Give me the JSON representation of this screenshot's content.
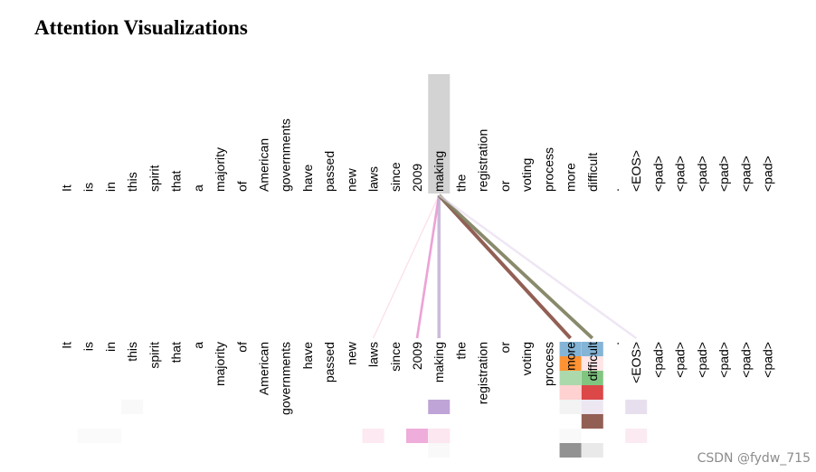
{
  "title": "Attention Visualizations",
  "watermark": "CSDN @fydw_715",
  "tokens": [
    "It",
    "is",
    "in",
    "this",
    "spirit",
    "that",
    "a",
    "majority",
    "of",
    "American",
    "governments",
    "have",
    "passed",
    "new",
    "laws",
    "since",
    "2009",
    "making",
    "the",
    "registration",
    "or",
    "voting",
    "process",
    "more",
    "difficult",
    ".",
    "<EOS>",
    "<pad>",
    "<pad>",
    "<pad>",
    "<pad>",
    "<pad>",
    "<pad>"
  ],
  "selected_token_index": 17,
  "attention_lines": [
    {
      "to": 14,
      "color": "#f7b6d2",
      "weight": 0.12
    },
    {
      "to": 16,
      "color": "#e377c2",
      "weight": 0.55
    },
    {
      "to": 17,
      "color": "#c5b0d5",
      "weight": 0.85
    },
    {
      "to": 23,
      "color": "#8c564b",
      "weight": 1.0
    },
    {
      "to": 24,
      "color": "#7f7f5f",
      "weight": 0.95
    },
    {
      "to": 26,
      "color": "#e6d8ee",
      "weight": 0.5
    }
  ],
  "highlight_cells": [
    {
      "col": 23,
      "row": 0,
      "color": "#1f77b4",
      "opacity": 0.55
    },
    {
      "col": 24,
      "row": 0,
      "color": "#1f77b4",
      "opacity": 0.55
    },
    {
      "col": 23,
      "row": 1,
      "color": "#ff7f0e",
      "opacity": 0.85
    },
    {
      "col": 24,
      "row": 1,
      "color": "#ff9896",
      "opacity": 0.25
    },
    {
      "col": 23,
      "row": 2,
      "color": "#2ca02c",
      "opacity": 0.4
    },
    {
      "col": 24,
      "row": 2,
      "color": "#2ca02c",
      "opacity": 0.6
    },
    {
      "col": 23,
      "row": 3,
      "color": "#ff9896",
      "opacity": 0.45
    },
    {
      "col": 24,
      "row": 3,
      "color": "#d62728",
      "opacity": 0.85
    },
    {
      "col": 17,
      "row": 4,
      "color": "#9467bd",
      "opacity": 0.6
    },
    {
      "col": 23,
      "row": 4,
      "color": "#e8e8e8",
      "opacity": 0.5
    },
    {
      "col": 24,
      "row": 4,
      "color": "#c5b0d5",
      "opacity": 0.3
    },
    {
      "col": 26,
      "row": 4,
      "color": "#c5b0d5",
      "opacity": 0.4
    },
    {
      "col": 3,
      "row": 4,
      "color": "#f0f0f0",
      "opacity": 0.4
    },
    {
      "col": 24,
      "row": 5,
      "color": "#8c564b",
      "opacity": 0.95
    },
    {
      "col": 1,
      "row": 6,
      "color": "#f5f5f5",
      "opacity": 0.5
    },
    {
      "col": 2,
      "row": 6,
      "color": "#f5f5f5",
      "opacity": 0.5
    },
    {
      "col": 14,
      "row": 6,
      "color": "#f7b6d2",
      "opacity": 0.3
    },
    {
      "col": 16,
      "row": 6,
      "color": "#e377c2",
      "opacity": 0.6
    },
    {
      "col": 17,
      "row": 6,
      "color": "#f7b6d2",
      "opacity": 0.35
    },
    {
      "col": 23,
      "row": 6,
      "color": "#f5f5f5",
      "opacity": 0.6
    },
    {
      "col": 26,
      "row": 6,
      "color": "#f7d6e6",
      "opacity": 0.5
    },
    {
      "col": 23,
      "row": 7,
      "color": "#7f7f7f",
      "opacity": 0.85
    },
    {
      "col": 24,
      "row": 7,
      "color": "#c7c7c7",
      "opacity": 0.4
    },
    {
      "col": 17,
      "row": 7,
      "color": "#f0f0f0",
      "opacity": 0.4
    }
  ],
  "colors": {
    "selected_bg": "#d3d3d3",
    "title": "#000000"
  }
}
